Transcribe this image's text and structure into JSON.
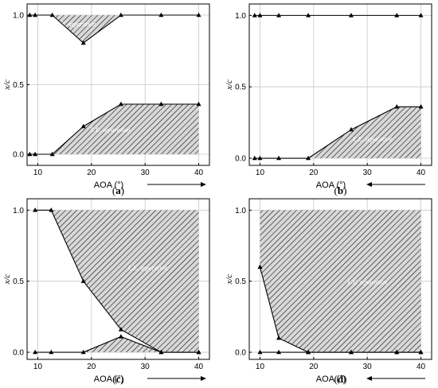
{
  "figure": {
    "colors": {
      "hatch": "#000000",
      "hatch_fill": "#d8d8d8",
      "grid": "#c8c8c8",
      "line": "#000000"
    }
  },
  "chart_data": [
    {
      "type": "area",
      "panel": "a",
      "caption_letter": "a",
      "xlabel": "AOA (°)",
      "ylabel": "x/c",
      "xlim": [
        8,
        42
      ],
      "ylim": [
        -0.08,
        1.08
      ],
      "xticks": [
        "10",
        "20",
        "30",
        "40"
      ],
      "yticks": [
        "0.0",
        "0.5",
        "1.0"
      ],
      "grid": true,
      "arrow": "right",
      "series": [
        {
          "x": [
            8.5,
            9.5,
            12.7,
            18.5,
            25.5,
            33,
            40
          ],
          "y": [
            1.0,
            1.0,
            1.0,
            0.8,
            1.0,
            1.0,
            1.0
          ]
        },
        {
          "x": [
            8.5,
            9.5,
            12.7,
            18.5,
            25.5,
            33,
            40
          ],
          "y": [
            0.0,
            0.0,
            0.0,
            0.2,
            0.36,
            0.36,
            0.36
          ]
        }
      ],
      "regions": [
        {
          "label": "T.E. separation",
          "x": [
            12.7,
            18.5,
            25.5
          ],
          "upper": [
            1.0,
            1.0,
            1.0
          ],
          "lower": [
            1.0,
            0.8,
            1.0
          ]
        },
        {
          "label": "L.E. separation",
          "x": [
            12.7,
            18.5,
            25.5,
            33,
            40
          ],
          "upper": [
            0.0,
            0.2,
            0.36,
            0.36,
            0.36
          ],
          "lower": [
            0.0,
            0.0,
            0.0,
            0.0,
            0.0
          ]
        }
      ]
    },
    {
      "type": "area",
      "panel": "b",
      "caption_letter": "b",
      "xlabel": "AOA (°)",
      "ylabel": "x/c",
      "xlim": [
        8,
        42
      ],
      "ylim": [
        -0.05,
        1.08
      ],
      "xticks": [
        "10",
        "20",
        "30",
        "40"
      ],
      "yticks": [
        "0.0",
        "0.5",
        "1.0"
      ],
      "grid": true,
      "arrow": "left",
      "series": [
        {
          "x": [
            9,
            10,
            13.5,
            19,
            27,
            35.5,
            40
          ],
          "y": [
            1.0,
            1.0,
            1.0,
            1.0,
            1.0,
            1.0,
            1.0
          ]
        },
        {
          "x": [
            9,
            10,
            13.5,
            19,
            27,
            35.5,
            40
          ],
          "y": [
            0.0,
            0.0,
            0.0,
            0.0,
            0.2,
            0.36,
            0.36
          ]
        }
      ],
      "regions": [
        {
          "label": "L.E. separation",
          "x": [
            19,
            27,
            35.5,
            40
          ],
          "upper": [
            0.0,
            0.2,
            0.36,
            0.36
          ],
          "lower": [
            0.0,
            0.0,
            0.0,
            0.0
          ]
        }
      ]
    },
    {
      "type": "area",
      "panel": "c",
      "caption_letter": "c",
      "xlabel": "AOA (°)",
      "ylabel": "x/c",
      "xlim": [
        8,
        42
      ],
      "ylim": [
        -0.05,
        1.08
      ],
      "xticks": [
        "10",
        "20",
        "30",
        "40"
      ],
      "yticks": [
        "0.0",
        "0.5",
        "1.0"
      ],
      "grid": true,
      "arrow": "right",
      "series": [
        {
          "x": [
            9.5,
            12.5,
            18.5,
            25.5,
            33,
            40
          ],
          "y": [
            1.0,
            1.0,
            0.5,
            0.16,
            0.0,
            0.0
          ]
        },
        {
          "x": [
            9.5,
            12.5,
            18.5,
            25.5,
            33,
            40
          ],
          "y": [
            0.0,
            0.0,
            0.0,
            0.11,
            0.0,
            0.0
          ]
        }
      ],
      "regions": [
        {
          "label": "L.E. separation",
          "x": [
            12.5,
            18.5,
            25.5,
            33,
            40
          ],
          "upper": [
            1.0,
            1.0,
            1.0,
            1.0,
            1.0
          ],
          "lower": [
            1.0,
            0.5,
            0.16,
            0.0,
            0.0
          ]
        },
        {
          "label": "",
          "x": [
            18.5,
            25.5,
            33
          ],
          "upper": [
            0.0,
            0.11,
            0.0
          ],
          "lower": [
            0.0,
            0.0,
            0.0
          ]
        }
      ]
    },
    {
      "type": "area",
      "panel": "d",
      "caption_letter": "d",
      "xlabel": "AOA (°)",
      "ylabel": "x/c",
      "xlim": [
        8,
        42
      ],
      "ylim": [
        -0.05,
        1.08
      ],
      "xticks": [
        "10",
        "20",
        "30",
        "40"
      ],
      "yticks": [
        "0.0",
        "0.5",
        "1.0"
      ],
      "grid": true,
      "arrow": "left",
      "series": [
        {
          "x": [
            10,
            13.5,
            19,
            27,
            35.5,
            40
          ],
          "y": [
            0.6,
            0.1,
            0.0,
            0.0,
            0.0,
            0.0
          ]
        },
        {
          "x": [
            10,
            13.5,
            19,
            27,
            35.5,
            40
          ],
          "y": [
            0.0,
            0.0,
            0.0,
            0.0,
            0.0,
            0.0
          ]
        }
      ],
      "regions": [
        {
          "label": "L.E. separation",
          "x": [
            10,
            13.5,
            19,
            27,
            35.5,
            40
          ],
          "upper": [
            1.0,
            1.0,
            1.0,
            1.0,
            1.0,
            1.0
          ],
          "lower": [
            0.6,
            0.1,
            0.0,
            0.0,
            0.0,
            0.0
          ]
        }
      ]
    }
  ]
}
